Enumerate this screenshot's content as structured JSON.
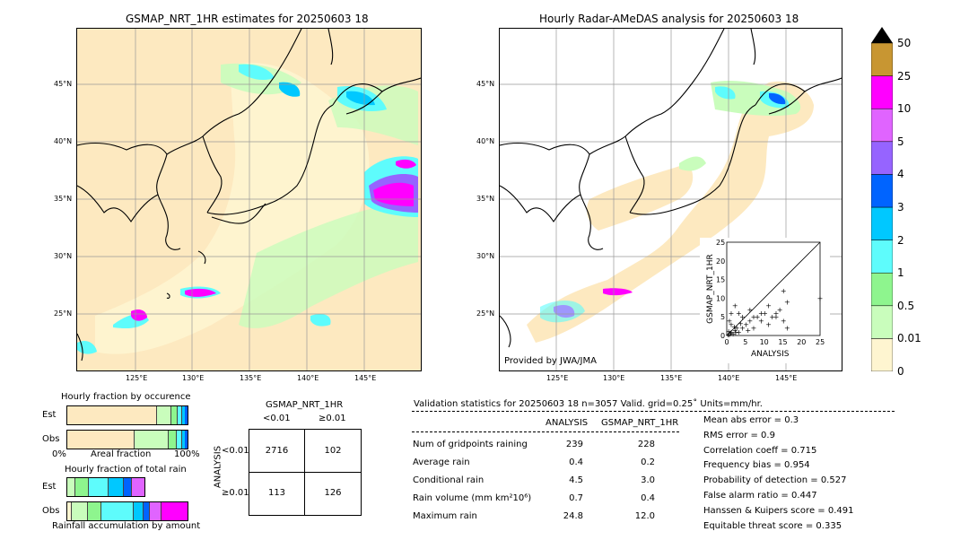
{
  "left_map": {
    "title": "GSMAP_NRT_1HR estimates for 20250603 18",
    "lat_labels": [
      "45°N",
      "40°N",
      "35°N",
      "30°N",
      "25°N"
    ],
    "lon_labels": [
      "125°E",
      "130°E",
      "135°E",
      "140°E",
      "145°E"
    ]
  },
  "right_map": {
    "title": "Hourly Radar-AMeDAS analysis for 20250603 18",
    "lat_labels": [
      "45°N",
      "40°N",
      "35°N",
      "30°N",
      "25°N"
    ],
    "lon_labels": [
      "125°E",
      "130°E",
      "135°E",
      "140°E",
      "145°E"
    ],
    "credit": "Provided by JWA/JMA"
  },
  "colorbar": {
    "levels": [
      "0",
      "0.01",
      "0.5",
      "1",
      "2",
      "3",
      "4",
      "5",
      "10",
      "25",
      "50"
    ],
    "colors": [
      "#fde9c0",
      "#fef5d0",
      "#c9fdbc",
      "#8ef58e",
      "#5efcfc",
      "#00c8ff",
      "#0064ff",
      "#9664ff",
      "#e064ff",
      "#ff00ff",
      "#c89632"
    ]
  },
  "scatter": {
    "xlabel": "ANALYSIS",
    "ylabel": "GSMAP_NRT_1HR",
    "ticks": [
      "0",
      "5",
      "10",
      "15",
      "20",
      "25"
    ]
  },
  "chart_data": {
    "type": "scatter",
    "xlabel": "ANALYSIS",
    "ylabel": "GSMAP_NRT_1HR",
    "xlim": [
      0,
      25
    ],
    "ylim": [
      0,
      25
    ],
    "points": [
      [
        0.2,
        0.3
      ],
      [
        0.5,
        0.2
      ],
      [
        1,
        1
      ],
      [
        1.5,
        0.5
      ],
      [
        2,
        1.5
      ],
      [
        2.5,
        2
      ],
      [
        3,
        1
      ],
      [
        1,
        3
      ],
      [
        0.5,
        4
      ],
      [
        4,
        2
      ],
      [
        5,
        3
      ],
      [
        6,
        4
      ],
      [
        7,
        2
      ],
      [
        8,
        5
      ],
      [
        9,
        4
      ],
      [
        10,
        6
      ],
      [
        11,
        3
      ],
      [
        12,
        5
      ],
      [
        13,
        6
      ],
      [
        14,
        7
      ],
      [
        15,
        4
      ],
      [
        16,
        2
      ],
      [
        3,
        6
      ],
      [
        2,
        8
      ],
      [
        1,
        6
      ],
      [
        4,
        5
      ],
      [
        6,
        7
      ],
      [
        11,
        8
      ],
      [
        13,
        5
      ],
      [
        15,
        12
      ],
      [
        16,
        9
      ],
      [
        9,
        6
      ],
      [
        7,
        5
      ],
      [
        24.8,
        10
      ],
      [
        0.3,
        1.2
      ],
      [
        1.8,
        2.4
      ],
      [
        2.2,
        0.8
      ],
      [
        3.5,
        3.2
      ],
      [
        5.5,
        1.5
      ],
      [
        0.8,
        0.6
      ]
    ]
  },
  "bottom_left": {
    "occurrence_title": "Hourly fraction by occurence",
    "est_label": "Est",
    "obs_label": "Obs",
    "axis_left": "0%",
    "axis_mid": "Areal fraction",
    "axis_right": "100%",
    "amount_title": "Hourly fraction of total rain",
    "amount_footer": "Rainfall accumulation by amount"
  },
  "contingency": {
    "title": "GSMAP_NRT_1HR",
    "col_lt": "<0.01",
    "col_ge": "≥0.01",
    "row_axis": "ANALYSIS",
    "row_lt": "<0.01",
    "row_ge": "≥0.01",
    "cells": [
      "2716",
      "102",
      "113",
      "126"
    ]
  },
  "validation": {
    "header": "Validation statistics for 20250603 18  n=3057 Valid. grid=0.25˚ Units=mm/hr.",
    "col1": "ANALYSIS",
    "col2": "GSMAP_NRT_1HR",
    "rows": [
      {
        "label": "Num of gridpoints raining",
        "a": "239",
        "g": "228"
      },
      {
        "label": "Average rain",
        "a": "0.4",
        "g": "0.2"
      },
      {
        "label": "Conditional rain",
        "a": "4.5",
        "g": "3.0"
      },
      {
        "label": "Rain volume (mm km²10⁶)",
        "a": "0.7",
        "g": "0.4"
      },
      {
        "label": "Maximum rain",
        "a": "24.8",
        "g": "12.0"
      }
    ],
    "scores": [
      "Mean abs error =    0.3",
      "RMS error =    0.9",
      "Correlation coeff =  0.715",
      "Frequency bias =  0.954",
      "Probability of detection =  0.527",
      "False alarm ratio =  0.447",
      "Hanssen & Kuipers score =  0.491",
      "Equitable threat score =  0.335"
    ]
  }
}
